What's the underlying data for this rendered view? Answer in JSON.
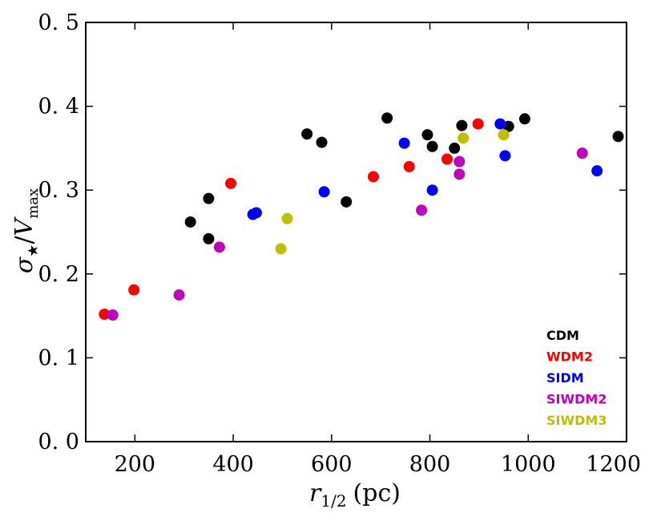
{
  "chart_data": {
    "type": "scatter",
    "xlabel_var": "r",
    "xlabel_sub": "1/2",
    "xlabel_unit": "(pc)",
    "ylabel_num": "σ",
    "ylabel_num_sub": "★",
    "ylabel_den": "V",
    "ylabel_den_sub": "max",
    "xlim": [
      100,
      1200
    ],
    "ylim": [
      0.0,
      0.5
    ],
    "xticks": [
      200,
      400,
      600,
      800,
      1000,
      1200
    ],
    "xtick_labels": [
      "200",
      "400",
      "600",
      "800",
      "1000",
      "1200"
    ],
    "yticks": [
      0.0,
      0.1,
      0.2,
      0.3,
      0.4,
      0.5
    ],
    "ytick_labels": [
      "0. 0",
      "0. 1",
      "0. 2",
      "0. 3",
      "0. 4",
      "0. 5"
    ],
    "grid": false,
    "legend_position": "bottom-right",
    "series": [
      {
        "name": "CDM",
        "color": "#000000",
        "points": [
          [
            313,
            0.262
          ],
          [
            350,
            0.29
          ],
          [
            350,
            0.242
          ],
          [
            550,
            0.367
          ],
          [
            580,
            0.357
          ],
          [
            630,
            0.286
          ],
          [
            713,
            0.386
          ],
          [
            795,
            0.366
          ],
          [
            805,
            0.352
          ],
          [
            850,
            0.35
          ],
          [
            865,
            0.377
          ],
          [
            960,
            0.376
          ],
          [
            993,
            0.385
          ],
          [
            1183,
            0.364
          ]
        ]
      },
      {
        "name": "WDM2",
        "color": "#ff0000",
        "points": [
          [
            138,
            0.152
          ],
          [
            198,
            0.181
          ],
          [
            395,
            0.308
          ],
          [
            685,
            0.316
          ],
          [
            758,
            0.328
          ],
          [
            835,
            0.337
          ],
          [
            898,
            0.379
          ]
        ]
      },
      {
        "name": "SIDM",
        "color": "#0000ff",
        "points": [
          [
            440,
            0.271
          ],
          [
            447,
            0.273
          ],
          [
            585,
            0.298
          ],
          [
            748,
            0.356
          ],
          [
            805,
            0.3
          ],
          [
            943,
            0.379
          ],
          [
            953,
            0.341
          ],
          [
            1140,
            0.323
          ]
        ]
      },
      {
        "name": "SIWDM2",
        "color": "#bf00bf",
        "points": [
          [
            155,
            0.151
          ],
          [
            290,
            0.175
          ],
          [
            372,
            0.232
          ],
          [
            783,
            0.276
          ],
          [
            860,
            0.334
          ],
          [
            860,
            0.319
          ],
          [
            1110,
            0.344
          ]
        ]
      },
      {
        "name": "SIWDM3",
        "color": "#bfbf00",
        "points": [
          [
            497,
            0.23
          ],
          [
            510,
            0.266
          ],
          [
            868,
            0.362
          ],
          [
            950,
            0.366
          ]
        ]
      }
    ]
  }
}
